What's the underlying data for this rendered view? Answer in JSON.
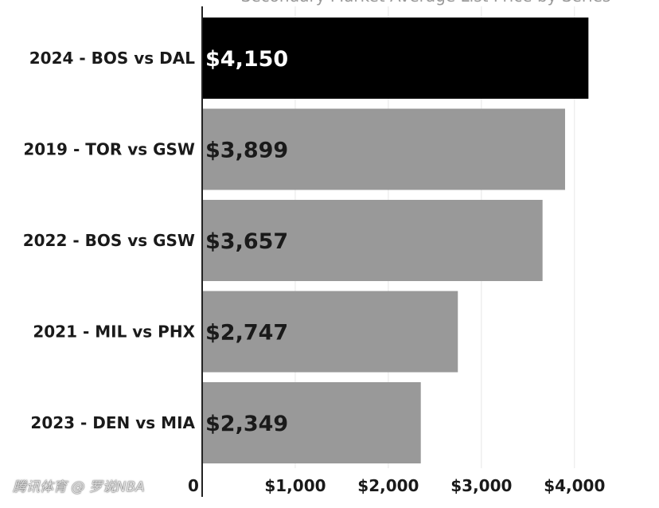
{
  "chart_data": {
    "type": "bar",
    "orientation": "horizontal",
    "title": "Secondary Market Average List Price by Series",
    "categories": [
      "2024 - BOS vs DAL",
      "2019 - TOR vs GSW",
      "2022 - BOS vs GSW",
      "2021 - MIL vs PHX",
      "2023 - DEN vs MIA"
    ],
    "values": [
      4150,
      3899,
      3657,
      2747,
      2349
    ],
    "value_labels": [
      "$4,150",
      "$3,899",
      "$3,657",
      "$2,747",
      "$2,349"
    ],
    "highlight_index": 0,
    "xlim": [
      0,
      4400
    ],
    "xticks": [
      0,
      1000,
      2000,
      3000,
      4000
    ],
    "xtick_labels": [
      "0",
      "$1,000",
      "$2,000",
      "$3,000",
      "$4,000"
    ],
    "xlabel": "",
    "ylabel": "",
    "grid": "vertical",
    "colors": {
      "highlight": "#000000",
      "default": "#999999",
      "grid": "#e6e6e6",
      "axis": "#222222",
      "label_on_dark": "#ffffff",
      "label_on_light": "#1a1a1a"
    }
  },
  "watermark": "腾讯体育 @ 罗说NBA"
}
